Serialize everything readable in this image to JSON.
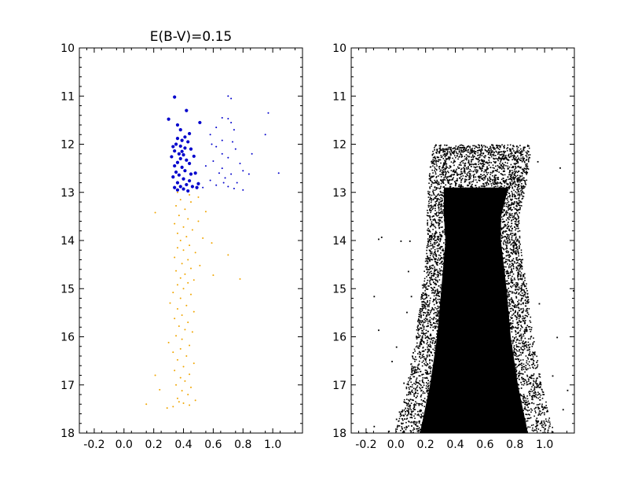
{
  "chart_data": [
    {
      "type": "scatter",
      "title": "E(B-V)=0.15",
      "xlabel": "",
      "ylabel": "",
      "xlim": [
        -0.3,
        1.2
      ],
      "ylim": [
        18,
        10
      ],
      "y_inverted": true,
      "xticks": [
        -0.2,
        0.0,
        0.2,
        0.4,
        0.6,
        0.8,
        1.0
      ],
      "xtick_labels": [
        "-0.2",
        "0.0",
        "0.2",
        "0.4",
        "0.6",
        "0.8",
        "1.0"
      ],
      "yticks": [
        10,
        11,
        12,
        13,
        14,
        15,
        16,
        17,
        18
      ],
      "ytick_labels": [
        "10",
        "11",
        "12",
        "13",
        "14",
        "15",
        "16",
        "17",
        "18"
      ],
      "grid": false,
      "series": [
        {
          "color": "#0000cc",
          "marker": "dot-large",
          "points": [
            [
              0.34,
              11.02
            ],
            [
              0.42,
              11.3
            ],
            [
              0.3,
              11.48
            ],
            [
              0.36,
              11.6
            ],
            [
              0.38,
              11.7
            ],
            [
              0.44,
              11.78
            ],
            [
              0.41,
              11.85
            ],
            [
              0.36,
              11.88
            ],
            [
              0.39,
              11.92
            ],
            [
              0.43,
              11.95
            ],
            [
              0.35,
              12.0
            ],
            [
              0.38,
              12.04
            ],
            [
              0.41,
              12.08
            ],
            [
              0.45,
              12.1
            ],
            [
              0.34,
              12.14
            ],
            [
              0.37,
              12.2
            ],
            [
              0.4,
              12.22
            ],
            [
              0.32,
              12.26
            ],
            [
              0.38,
              12.3
            ],
            [
              0.42,
              12.33
            ],
            [
              0.36,
              12.38
            ],
            [
              0.44,
              12.4
            ],
            [
              0.34,
              12.45
            ],
            [
              0.39,
              12.48
            ],
            [
              0.41,
              12.55
            ],
            [
              0.35,
              12.58
            ],
            [
              0.48,
              12.6
            ],
            [
              0.37,
              12.64
            ],
            [
              0.33,
              12.68
            ],
            [
              0.4,
              12.72
            ],
            [
              0.44,
              12.76
            ],
            [
              0.36,
              12.8
            ],
            [
              0.42,
              12.84
            ],
            [
              0.38,
              12.88
            ],
            [
              0.34,
              12.9
            ],
            [
              0.4,
              12.93
            ],
            [
              0.46,
              12.88
            ],
            [
              0.5,
              12.82
            ],
            [
              0.36,
              12.95
            ],
            [
              0.43,
              12.97
            ],
            [
              0.39,
              12.15
            ],
            [
              0.47,
              12.25
            ],
            [
              0.33,
              12.05
            ],
            [
              0.45,
              12.62
            ],
            [
              0.51,
              11.55
            ],
            [
              0.49,
              12.9
            ]
          ]
        },
        {
          "color": "#0000cc",
          "marker": "dot-small",
          "points": [
            [
              0.7,
              11.0
            ],
            [
              0.72,
              11.05
            ],
            [
              0.66,
              11.45
            ],
            [
              0.7,
              11.47
            ],
            [
              0.72,
              11.55
            ],
            [
              0.62,
              11.65
            ],
            [
              0.74,
              11.7
            ],
            [
              0.97,
              11.35
            ],
            [
              0.95,
              11.8
            ],
            [
              0.58,
              11.8
            ],
            [
              0.66,
              11.92
            ],
            [
              0.73,
              11.95
            ],
            [
              0.59,
              12.0
            ],
            [
              0.62,
              12.05
            ],
            [
              0.75,
              12.1
            ],
            [
              0.86,
              12.2
            ],
            [
              0.7,
              12.28
            ],
            [
              0.78,
              12.4
            ],
            [
              0.66,
              12.5
            ],
            [
              0.8,
              12.55
            ],
            [
              0.64,
              12.6
            ],
            [
              0.72,
              12.62
            ],
            [
              0.84,
              12.62
            ],
            [
              1.04,
              12.6
            ],
            [
              0.68,
              12.7
            ],
            [
              0.58,
              12.75
            ],
            [
              0.76,
              12.8
            ],
            [
              0.62,
              12.85
            ],
            [
              0.7,
              12.88
            ],
            [
              0.74,
              12.92
            ],
            [
              0.6,
              12.35
            ],
            [
              0.55,
              12.45
            ],
            [
              0.66,
              12.2
            ],
            [
              0.8,
              12.95
            ],
            [
              0.53,
              12.9
            ],
            [
              0.67,
              12.8
            ]
          ]
        },
        {
          "color": "#f0a500",
          "marker": "dot-small",
          "points": [
            [
              0.36,
              13.0
            ],
            [
              0.44,
              13.05
            ],
            [
              0.5,
              13.1
            ],
            [
              0.38,
              13.15
            ],
            [
              0.21,
              13.42
            ],
            [
              0.45,
              13.2
            ],
            [
              0.35,
              13.28
            ],
            [
              0.41,
              13.35
            ],
            [
              0.55,
              13.4
            ],
            [
              0.37,
              13.48
            ],
            [
              0.43,
              13.55
            ],
            [
              0.5,
              13.6
            ],
            [
              0.34,
              13.65
            ],
            [
              0.4,
              13.72
            ],
            [
              0.46,
              13.78
            ],
            [
              0.36,
              13.85
            ],
            [
              0.42,
              13.92
            ],
            [
              0.53,
              13.95
            ],
            [
              0.38,
              14.0
            ],
            [
              0.59,
              14.05
            ],
            [
              0.44,
              14.1
            ],
            [
              0.36,
              14.15
            ],
            [
              0.4,
              14.2
            ],
            [
              0.48,
              14.25
            ],
            [
              0.7,
              14.3
            ],
            [
              0.34,
              14.35
            ],
            [
              0.43,
              14.4
            ],
            [
              0.39,
              14.48
            ],
            [
              0.51,
              14.52
            ],
            [
              0.45,
              14.58
            ],
            [
              0.35,
              14.63
            ],
            [
              0.41,
              14.7
            ],
            [
              0.6,
              14.72
            ],
            [
              0.38,
              14.78
            ],
            [
              0.47,
              14.82
            ],
            [
              0.78,
              14.8
            ],
            [
              0.43,
              14.88
            ],
            [
              0.36,
              14.92
            ],
            [
              0.4,
              15.0
            ],
            [
              0.33,
              15.08
            ],
            [
              0.45,
              15.12
            ],
            [
              0.38,
              15.2
            ],
            [
              0.31,
              15.3
            ],
            [
              0.42,
              15.35
            ],
            [
              0.36,
              15.42
            ],
            [
              0.47,
              15.48
            ],
            [
              0.39,
              15.55
            ],
            [
              0.34,
              15.62
            ],
            [
              0.43,
              15.7
            ],
            [
              0.37,
              15.78
            ],
            [
              0.41,
              15.85
            ],
            [
              0.46,
              15.9
            ],
            [
              0.35,
              15.98
            ],
            [
              0.39,
              16.05
            ],
            [
              0.3,
              16.12
            ],
            [
              0.44,
              16.18
            ],
            [
              0.38,
              16.25
            ],
            [
              0.33,
              16.32
            ],
            [
              0.42,
              16.4
            ],
            [
              0.36,
              16.48
            ],
            [
              0.47,
              16.55
            ],
            [
              0.4,
              16.62
            ],
            [
              0.34,
              16.7
            ],
            [
              0.44,
              16.78
            ],
            [
              0.38,
              16.85
            ],
            [
              0.21,
              16.8
            ],
            [
              0.41,
              16.92
            ],
            [
              0.35,
              17.0
            ],
            [
              0.45,
              17.05
            ],
            [
              0.39,
              17.12
            ],
            [
              0.24,
              17.1
            ],
            [
              0.43,
              17.2
            ],
            [
              0.36,
              17.28
            ],
            [
              0.48,
              17.32
            ],
            [
              0.4,
              17.38
            ],
            [
              0.15,
              17.4
            ],
            [
              0.33,
              17.45
            ],
            [
              0.29,
              17.48
            ],
            [
              0.44,
              17.42
            ],
            [
              0.37,
              17.35
            ]
          ]
        }
      ]
    },
    {
      "type": "scatter",
      "title": "",
      "xlabel": "",
      "ylabel": "",
      "xlim": [
        -0.3,
        1.2
      ],
      "ylim": [
        18,
        10
      ],
      "y_inverted": true,
      "xticks": [
        -0.2,
        0.0,
        0.2,
        0.4,
        0.6,
        0.8,
        1.0
      ],
      "xtick_labels": [
        "-0.2",
        "0.0",
        "0.2",
        "0.4",
        "0.6",
        "0.8",
        "1.0"
      ],
      "yticks": [
        10,
        11,
        12,
        13,
        14,
        15,
        16,
        17,
        18
      ],
      "ytick_labels": [
        "10",
        "11",
        "12",
        "13",
        "14",
        "15",
        "16",
        "17",
        "18"
      ],
      "grid": false,
      "series": [
        {
          "color": "#000000",
          "marker": "dot-small",
          "density_envelope": {
            "mag": [
              12.0,
              12.5,
              13.0,
              13.5,
              14.0,
              15.0,
              16.0,
              17.0,
              18.0
            ],
            "blue_edge": [
              0.3,
              0.28,
              0.27,
              0.27,
              0.28,
              0.25,
              0.22,
              0.17,
              0.1
            ],
            "red_edge": [
              0.85,
              0.84,
              0.8,
              0.76,
              0.76,
              0.8,
              0.83,
              0.88,
              0.95
            ]
          },
          "scattered_points": [
            [
              -0.1,
              13.92
            ],
            [
              -0.12,
              13.96
            ],
            [
              -0.15,
              15.15
            ],
            [
              -0.12,
              15.85
            ],
            [
              0.03,
              14.0
            ],
            [
              0.09,
              14.0
            ],
            [
              0.08,
              14.63
            ],
            [
              0.07,
              15.48
            ],
            [
              0.1,
              15.15
            ],
            [
              -0.03,
              16.5
            ],
            [
              1.1,
              12.48
            ],
            [
              0.95,
              12.35
            ],
            [
              1.08,
              16.0
            ],
            [
              1.15,
              17.1
            ],
            [
              1.0,
              17.9
            ],
            [
              0.92,
              16.55
            ],
            [
              1.19,
              15.03
            ],
            [
              0.0,
              17.7
            ],
            [
              -0.05,
              17.95
            ],
            [
              -0.15,
              17.85
            ],
            [
              0.05,
              16.95
            ],
            [
              0.02,
              17.55
            ],
            [
              1.12,
              17.5
            ],
            [
              -0.2,
              17.98
            ],
            [
              0.13,
              17.8
            ],
            [
              0.96,
              15.3
            ],
            [
              0.0,
              16.2
            ],
            [
              0.14,
              17.1
            ],
            [
              0.16,
              16.1
            ],
            [
              1.05,
              16.8
            ]
          ]
        }
      ]
    }
  ]
}
